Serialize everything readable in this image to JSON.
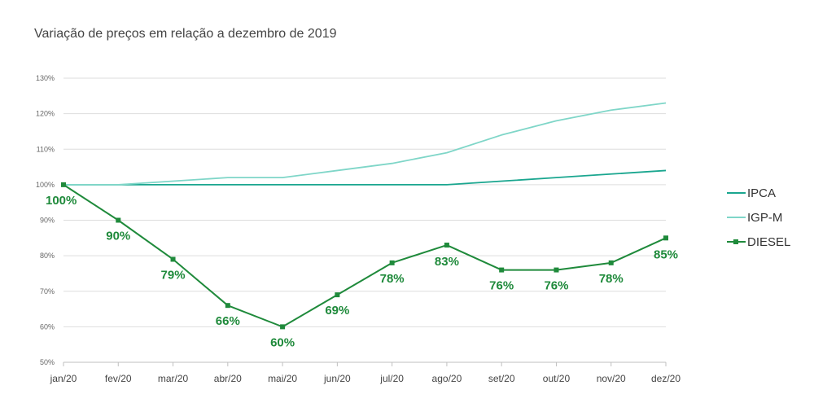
{
  "chart_data": {
    "type": "line",
    "title": "Variação de preços em relação a dezembro de 2019",
    "categories": [
      "jan/20",
      "fev/20",
      "mar/20",
      "abr/20",
      "mai/20",
      "jun/20",
      "jul/20",
      "ago/20",
      "set/20",
      "out/20",
      "nov/20",
      "dez/20"
    ],
    "ylim": [
      50,
      130
    ],
    "yticks": [
      50,
      60,
      70,
      80,
      90,
      100,
      110,
      120,
      130
    ],
    "ytick_labels": [
      "50%",
      "60%",
      "70%",
      "80%",
      "90%",
      "100%",
      "110%",
      "120%",
      "130%"
    ],
    "grid": true,
    "legend": "right",
    "series": [
      {
        "name": "IPCA",
        "color": "#1aa68f",
        "values": [
          100,
          100,
          100,
          100,
          100,
          100,
          100,
          100,
          101,
          102,
          103,
          104
        ]
      },
      {
        "name": "IGP-M",
        "color": "#7fd6c8",
        "values": [
          100,
          100,
          101,
          102,
          102,
          104,
          106,
          109,
          114,
          118,
          121,
          123
        ]
      },
      {
        "name": "DIESEL",
        "color": "#1f8a3b",
        "markers": true,
        "values": [
          100,
          90,
          79,
          66,
          60,
          69,
          78,
          83,
          76,
          76,
          78,
          85
        ],
        "labels": [
          "100%",
          "90%",
          "79%",
          "66%",
          "60%",
          "69%",
          "78%",
          "83%",
          "76%",
          "76%",
          "78%",
          "85%"
        ]
      }
    ]
  }
}
